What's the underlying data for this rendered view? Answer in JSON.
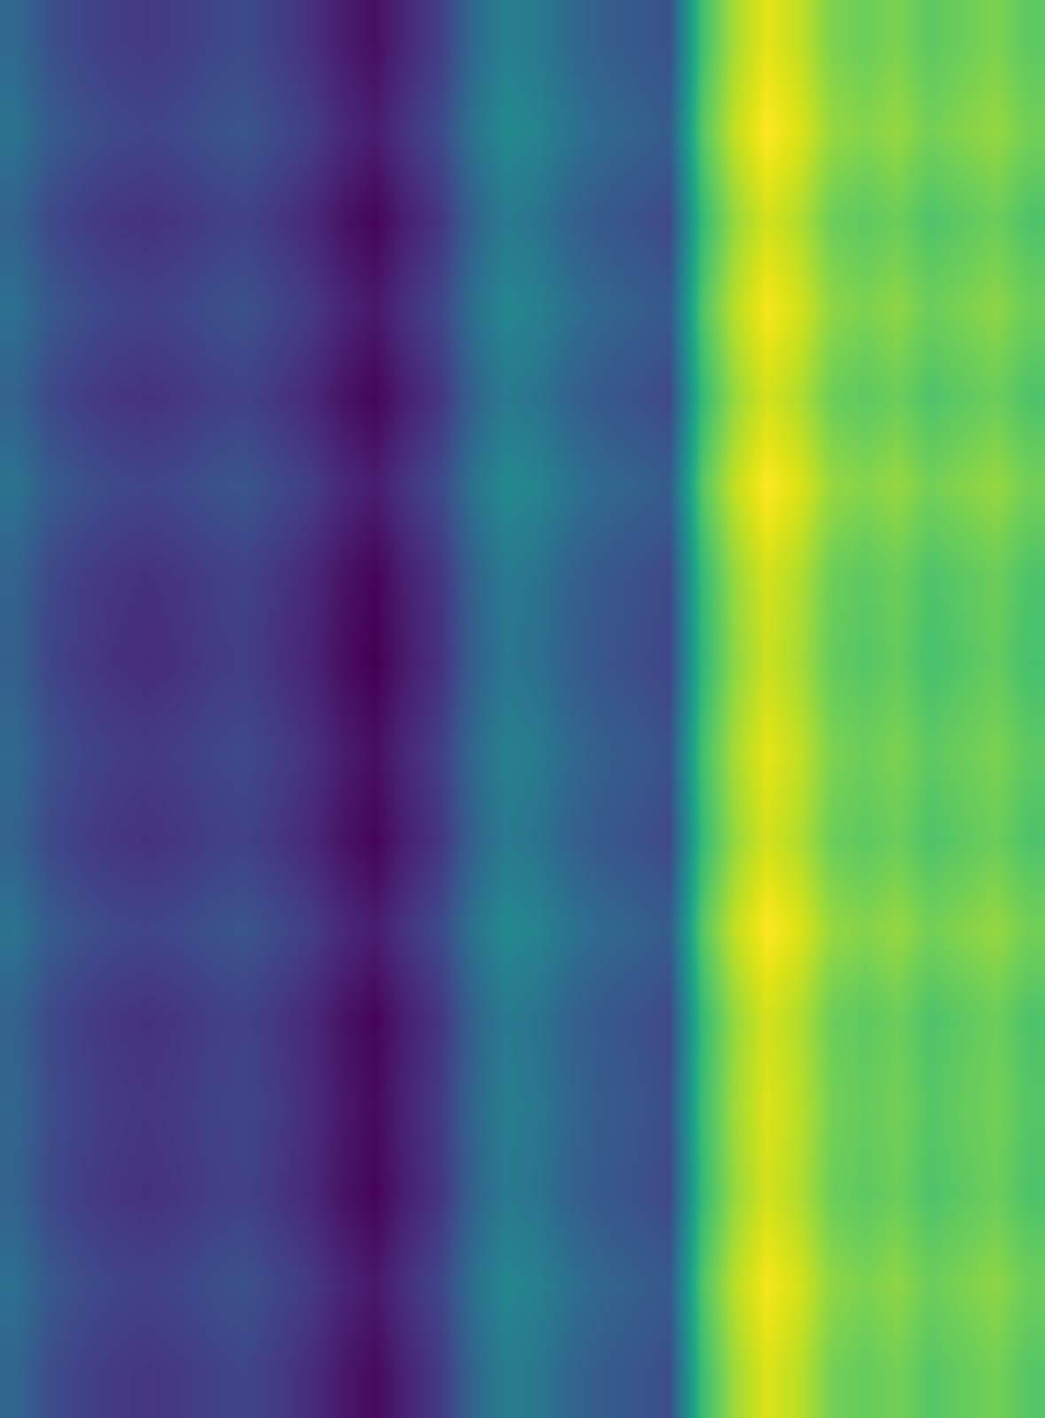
{
  "chart_data": {
    "type": "heatmap",
    "tick_labels": false,
    "cells": [
      [
        0.47,
        0.4,
        0.37,
        0.35,
        0.34,
        0.35,
        0.37,
        0.38,
        0.35,
        0.32,
        0.27,
        0.24,
        0.3,
        0.35,
        0.47,
        0.54,
        0.52,
        0.47,
        0.44,
        0.42,
        0.4,
        0.74,
        0.87,
        0.94,
        0.9,
        0.82,
        0.8,
        0.82,
        0.78,
        0.8,
        0.82,
        0.78
      ],
      [
        0.5,
        0.43,
        0.4,
        0.38,
        0.37,
        0.38,
        0.4,
        0.41,
        0.38,
        0.35,
        0.3,
        0.27,
        0.33,
        0.38,
        0.5,
        0.57,
        0.55,
        0.5,
        0.47,
        0.45,
        0.43,
        0.77,
        0.9,
        0.97,
        0.93,
        0.85,
        0.83,
        0.85,
        0.81,
        0.83,
        0.85,
        0.81
      ],
      [
        0.45,
        0.38,
        0.35,
        0.33,
        0.32,
        0.33,
        0.35,
        0.36,
        0.33,
        0.3,
        0.25,
        0.22,
        0.28,
        0.33,
        0.45,
        0.52,
        0.5,
        0.45,
        0.42,
        0.4,
        0.38,
        0.72,
        0.85,
        0.92,
        0.88,
        0.8,
        0.78,
        0.8,
        0.76,
        0.78,
        0.8,
        0.76
      ],
      [
        0.49,
        0.42,
        0.39,
        0.37,
        0.36,
        0.37,
        0.39,
        0.4,
        0.37,
        0.34,
        0.29,
        0.26,
        0.32,
        0.37,
        0.49,
        0.56,
        0.54,
        0.49,
        0.46,
        0.44,
        0.42,
        0.76,
        0.89,
        0.96,
        0.92,
        0.84,
        0.82,
        0.84,
        0.8,
        0.82,
        0.84,
        0.8
      ],
      [
        0.45,
        0.38,
        0.35,
        0.33,
        0.32,
        0.33,
        0.35,
        0.36,
        0.33,
        0.3,
        0.25,
        0.22,
        0.28,
        0.33,
        0.45,
        0.52,
        0.5,
        0.45,
        0.42,
        0.4,
        0.38,
        0.72,
        0.85,
        0.92,
        0.88,
        0.8,
        0.78,
        0.8,
        0.76,
        0.78,
        0.8,
        0.76
      ],
      [
        0.5,
        0.43,
        0.4,
        0.38,
        0.37,
        0.38,
        0.4,
        0.41,
        0.38,
        0.35,
        0.3,
        0.27,
        0.33,
        0.38,
        0.5,
        0.57,
        0.55,
        0.5,
        0.47,
        0.45,
        0.43,
        0.77,
        0.9,
        0.97,
        0.93,
        0.85,
        0.83,
        0.85,
        0.81,
        0.83,
        0.85,
        0.81
      ],
      [
        0.45,
        0.38,
        0.35,
        0.33,
        0.32,
        0.33,
        0.35,
        0.36,
        0.33,
        0.3,
        0.25,
        0.22,
        0.28,
        0.33,
        0.45,
        0.52,
        0.5,
        0.45,
        0.42,
        0.4,
        0.38,
        0.72,
        0.85,
        0.92,
        0.88,
        0.8,
        0.78,
        0.8,
        0.76,
        0.78,
        0.8,
        0.76
      ],
      [
        0.44,
        0.37,
        0.34,
        0.32,
        0.31,
        0.32,
        0.34,
        0.35,
        0.32,
        0.29,
        0.24,
        0.21,
        0.27,
        0.32,
        0.44,
        0.51,
        0.49,
        0.44,
        0.41,
        0.39,
        0.37,
        0.71,
        0.84,
        0.91,
        0.87,
        0.79,
        0.77,
        0.79,
        0.75,
        0.77,
        0.79,
        0.75
      ],
      [
        0.47,
        0.4,
        0.37,
        0.35,
        0.34,
        0.35,
        0.37,
        0.38,
        0.35,
        0.32,
        0.27,
        0.24,
        0.3,
        0.35,
        0.47,
        0.54,
        0.52,
        0.47,
        0.44,
        0.42,
        0.4,
        0.74,
        0.87,
        0.94,
        0.9,
        0.82,
        0.8,
        0.82,
        0.78,
        0.8,
        0.82,
        0.78
      ],
      [
        0.45,
        0.38,
        0.35,
        0.33,
        0.32,
        0.33,
        0.35,
        0.36,
        0.33,
        0.3,
        0.25,
        0.22,
        0.28,
        0.33,
        0.45,
        0.52,
        0.5,
        0.45,
        0.42,
        0.4,
        0.38,
        0.72,
        0.85,
        0.92,
        0.88,
        0.8,
        0.78,
        0.8,
        0.76,
        0.78,
        0.8,
        0.76
      ],
      [
        0.5,
        0.43,
        0.4,
        0.38,
        0.37,
        0.38,
        0.4,
        0.41,
        0.38,
        0.35,
        0.3,
        0.27,
        0.33,
        0.38,
        0.5,
        0.57,
        0.55,
        0.5,
        0.47,
        0.45,
        0.43,
        0.77,
        0.9,
        0.97,
        0.93,
        0.85,
        0.83,
        0.85,
        0.81,
        0.83,
        0.85,
        0.81
      ],
      [
        0.45,
        0.38,
        0.35,
        0.33,
        0.32,
        0.33,
        0.35,
        0.36,
        0.33,
        0.3,
        0.25,
        0.22,
        0.28,
        0.33,
        0.45,
        0.52,
        0.5,
        0.45,
        0.42,
        0.4,
        0.38,
        0.72,
        0.85,
        0.92,
        0.88,
        0.8,
        0.78,
        0.8,
        0.76,
        0.78,
        0.8,
        0.76
      ],
      [
        0.46,
        0.39,
        0.36,
        0.34,
        0.33,
        0.34,
        0.36,
        0.37,
        0.34,
        0.31,
        0.26,
        0.23,
        0.29,
        0.34,
        0.46,
        0.53,
        0.51,
        0.46,
        0.43,
        0.41,
        0.39,
        0.73,
        0.86,
        0.93,
        0.89,
        0.81,
        0.79,
        0.81,
        0.77,
        0.79,
        0.81,
        0.77
      ],
      [
        0.45,
        0.38,
        0.35,
        0.33,
        0.32,
        0.33,
        0.35,
        0.36,
        0.33,
        0.3,
        0.25,
        0.22,
        0.28,
        0.33,
        0.45,
        0.52,
        0.5,
        0.45,
        0.42,
        0.4,
        0.38,
        0.72,
        0.85,
        0.92,
        0.88,
        0.8,
        0.78,
        0.8,
        0.76,
        0.78,
        0.8,
        0.76
      ],
      [
        0.49,
        0.42,
        0.39,
        0.37,
        0.36,
        0.37,
        0.39,
        0.4,
        0.37,
        0.34,
        0.29,
        0.26,
        0.32,
        0.37,
        0.49,
        0.56,
        0.54,
        0.49,
        0.46,
        0.44,
        0.42,
        0.76,
        0.89,
        0.96,
        0.92,
        0.84,
        0.82,
        0.84,
        0.8,
        0.82,
        0.84,
        0.8
      ],
      [
        0.46,
        0.39,
        0.36,
        0.34,
        0.33,
        0.34,
        0.36,
        0.37,
        0.34,
        0.31,
        0.26,
        0.23,
        0.29,
        0.34,
        0.46,
        0.53,
        0.51,
        0.46,
        0.43,
        0.41,
        0.39,
        0.73,
        0.86,
        0.93,
        0.89,
        0.81,
        0.79,
        0.81,
        0.77,
        0.79,
        0.81,
        0.77
      ]
    ]
  }
}
